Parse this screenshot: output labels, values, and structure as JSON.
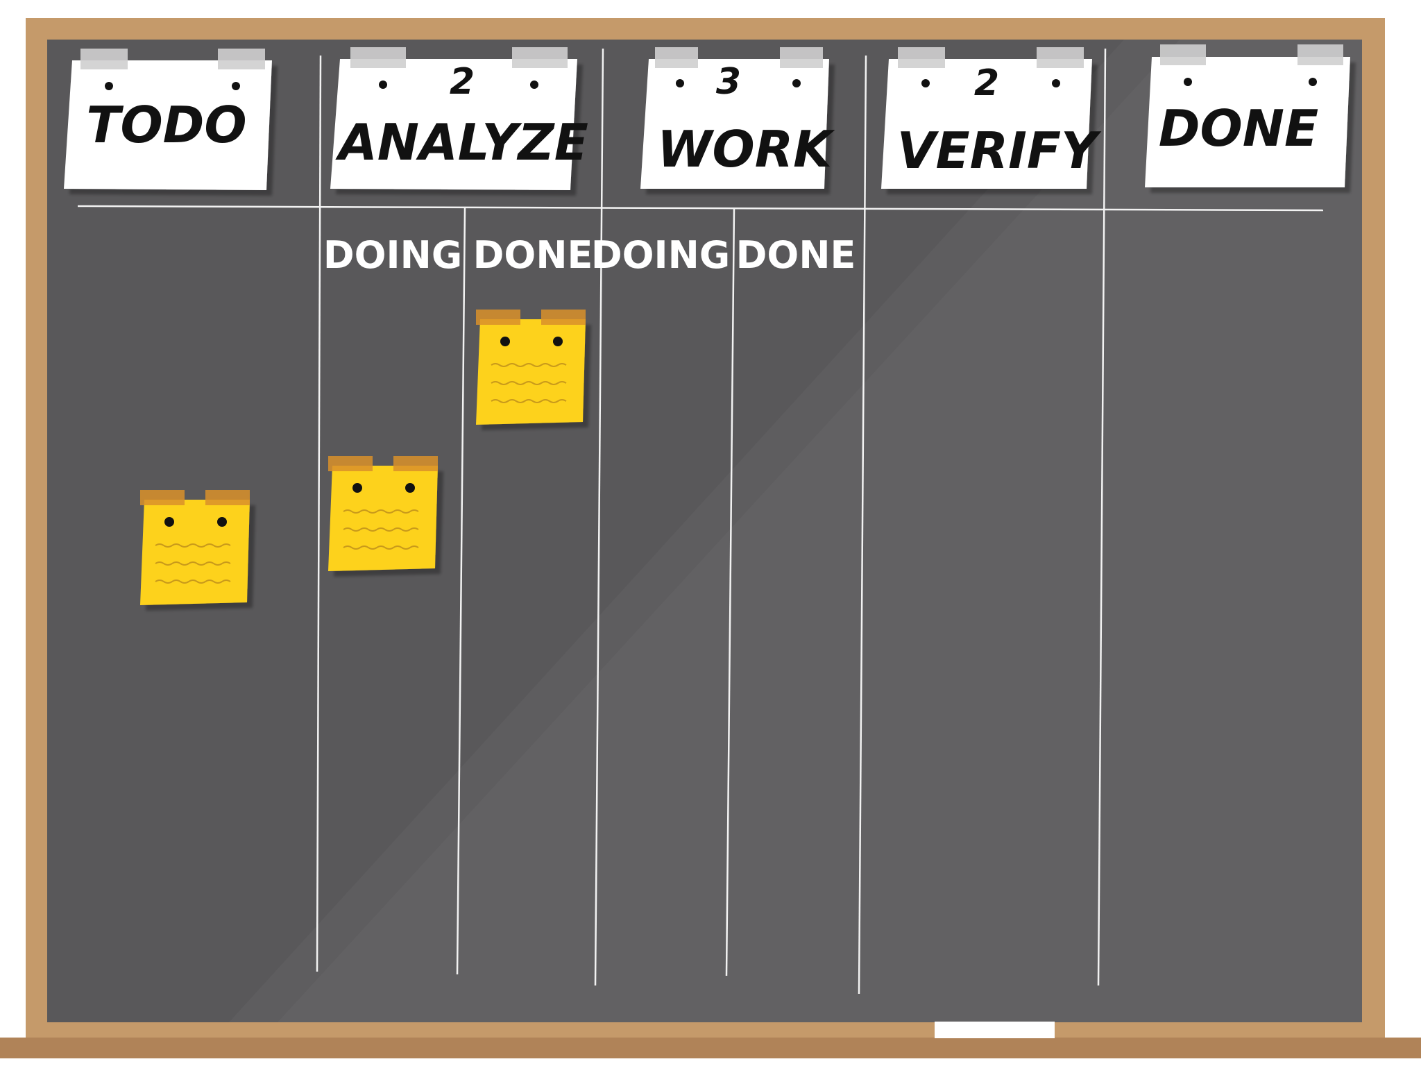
{
  "columns": [
    {
      "title": "TODO"
    },
    {
      "title": "ANALYZE",
      "limit": 2,
      "subcolumns": [
        "DOING",
        "DONE"
      ]
    },
    {
      "title": "WORK",
      "limit": 3,
      "subcolumns": [
        "DOING",
        "DONE"
      ]
    },
    {
      "title": "VERIFY",
      "limit": 2
    },
    {
      "title": "DONE"
    }
  ]
}
